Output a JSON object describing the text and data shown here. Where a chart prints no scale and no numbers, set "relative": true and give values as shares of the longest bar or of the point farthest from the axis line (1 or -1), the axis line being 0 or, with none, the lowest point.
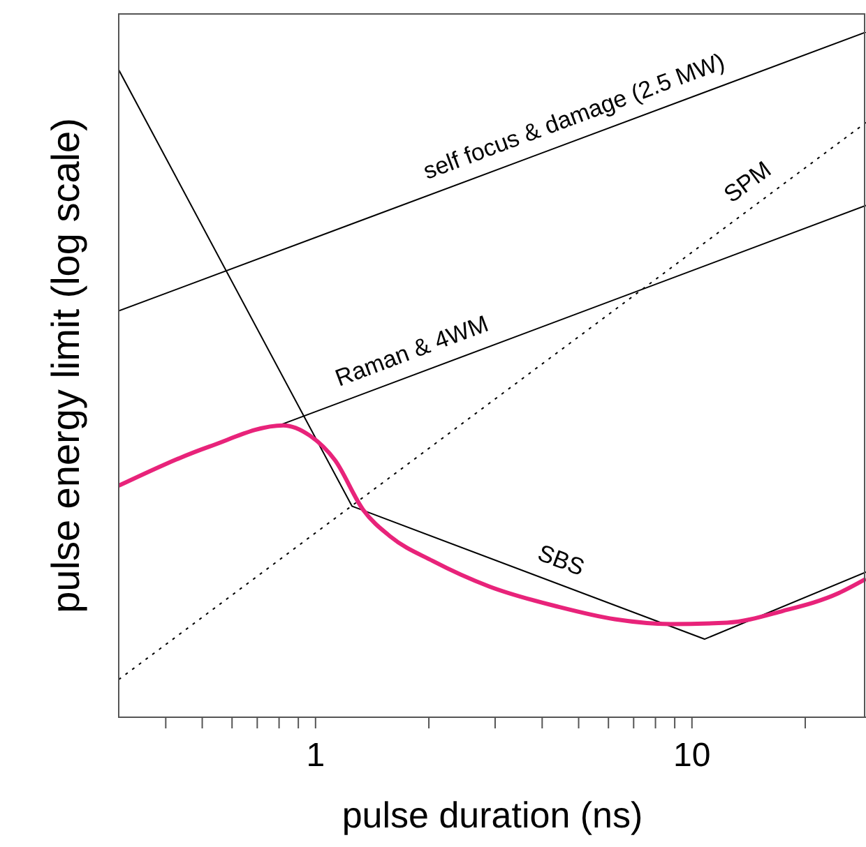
{
  "chart_data": {
    "type": "line",
    "xlabel": "pulse duration (ns)",
    "ylabel": "pulse energy limit (log scale)",
    "relative": true,
    "log": "x",
    "xlim": [
      0.3,
      29
    ],
    "xticks": [
      {
        "value": 0.4,
        "label": null
      },
      {
        "value": 0.5,
        "label": null
      },
      {
        "value": 0.6,
        "label": null
      },
      {
        "value": 0.7,
        "label": null
      },
      {
        "value": 0.8,
        "label": null
      },
      {
        "value": 0.9,
        "label": null
      },
      1,
      {
        "value": 2,
        "label": null
      },
      {
        "value": 3,
        "label": null
      },
      {
        "value": 4,
        "label": null
      },
      {
        "value": 5,
        "label": null
      },
      {
        "value": 6,
        "label": null
      },
      {
        "value": 7,
        "label": null
      },
      {
        "value": 8,
        "label": null
      },
      {
        "value": 9,
        "label": null
      },
      10,
      {
        "value": 20,
        "label": null
      }
    ],
    "series": [
      {
        "name": "self focus & damage (2.5 MW)",
        "color": "#000000",
        "line_style": "solid",
        "x": [
          0.3,
          29
        ],
        "values": [
          0.593,
          1
        ]
      },
      {
        "name": "Raman & 4WM",
        "color": "#000000",
        "line_style": "solid",
        "x": [
          0.8,
          29
        ],
        "values": [
          0.426,
          0.747
        ]
      },
      {
        "name": "SPM",
        "color": "#000000",
        "line_style": "dotted",
        "x": [
          0.3,
          29
        ],
        "values": [
          0.055,
          0.868
        ]
      },
      {
        "name": "SBS",
        "color": "#000000",
        "line_style": "solid",
        "x": [
          0.3,
          1.25,
          10.8,
          29
        ],
        "values": [
          0.945,
          0.308,
          0.114,
          0.212
        ]
      },
      {
        "color": "#e8237a",
        "line_style": "solid",
        "x": [
          0.3,
          0.522,
          0.821,
          0.966,
          1.127,
          1.337,
          1.587,
          2.05,
          2.89,
          4.43,
          6.24,
          8.78,
          12.4,
          17.4,
          24.5,
          29
        ],
        "values": [
          0.338,
          0.395,
          0.426,
          0.411,
          0.375,
          0.303,
          0.263,
          0.228,
          0.191,
          0.161,
          0.143,
          0.136,
          0.138,
          0.155,
          0.181,
          0.202
        ]
      }
    ]
  }
}
